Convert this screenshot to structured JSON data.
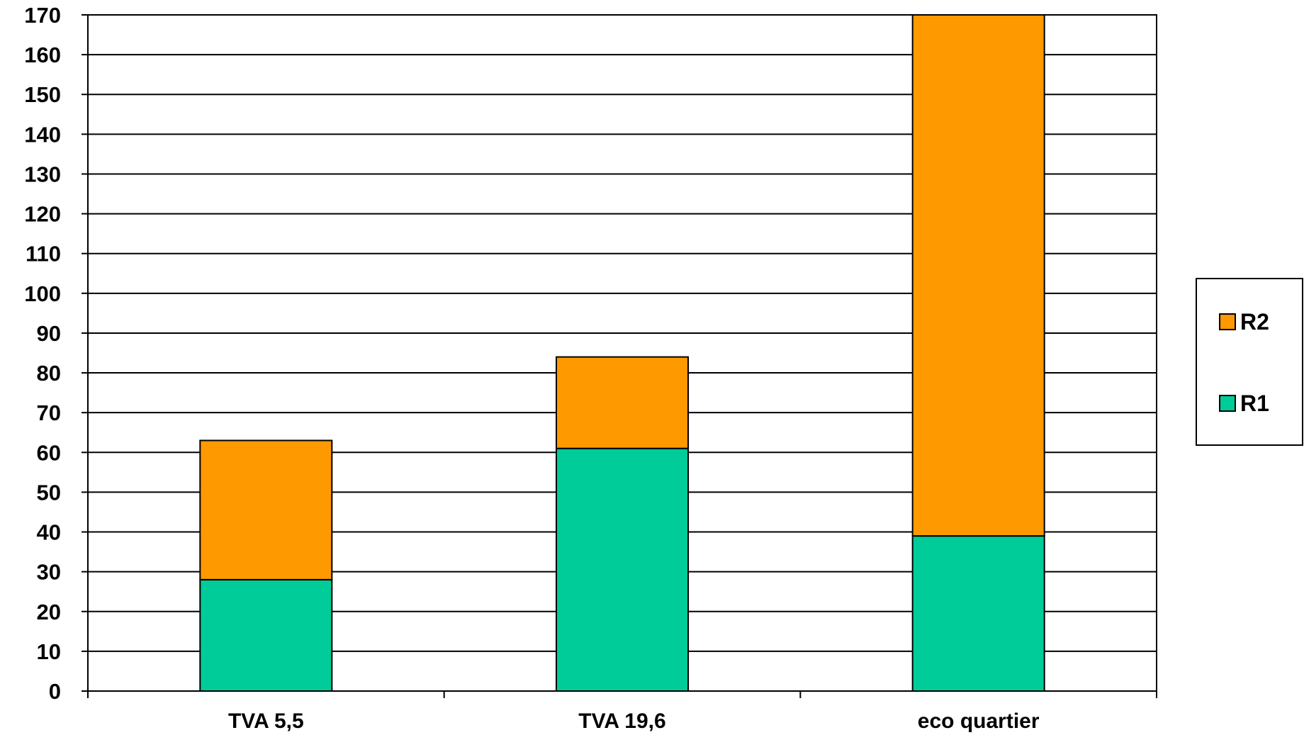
{
  "chart_data": {
    "type": "bar",
    "stacked": true,
    "categories": [
      "TVA 5,5",
      "TVA 19,6",
      "eco quartier"
    ],
    "series": [
      {
        "name": "R1",
        "values": [
          28,
          61,
          39
        ],
        "color": "#00cc99"
      },
      {
        "name": "R2",
        "values": [
          35,
          23,
          131
        ],
        "color": "#ff9900"
      }
    ],
    "ylim": [
      0,
      170
    ],
    "ytick_step": 10,
    "grid": true,
    "legend_position": "right",
    "legend_order": [
      "R2",
      "R1"
    ]
  }
}
